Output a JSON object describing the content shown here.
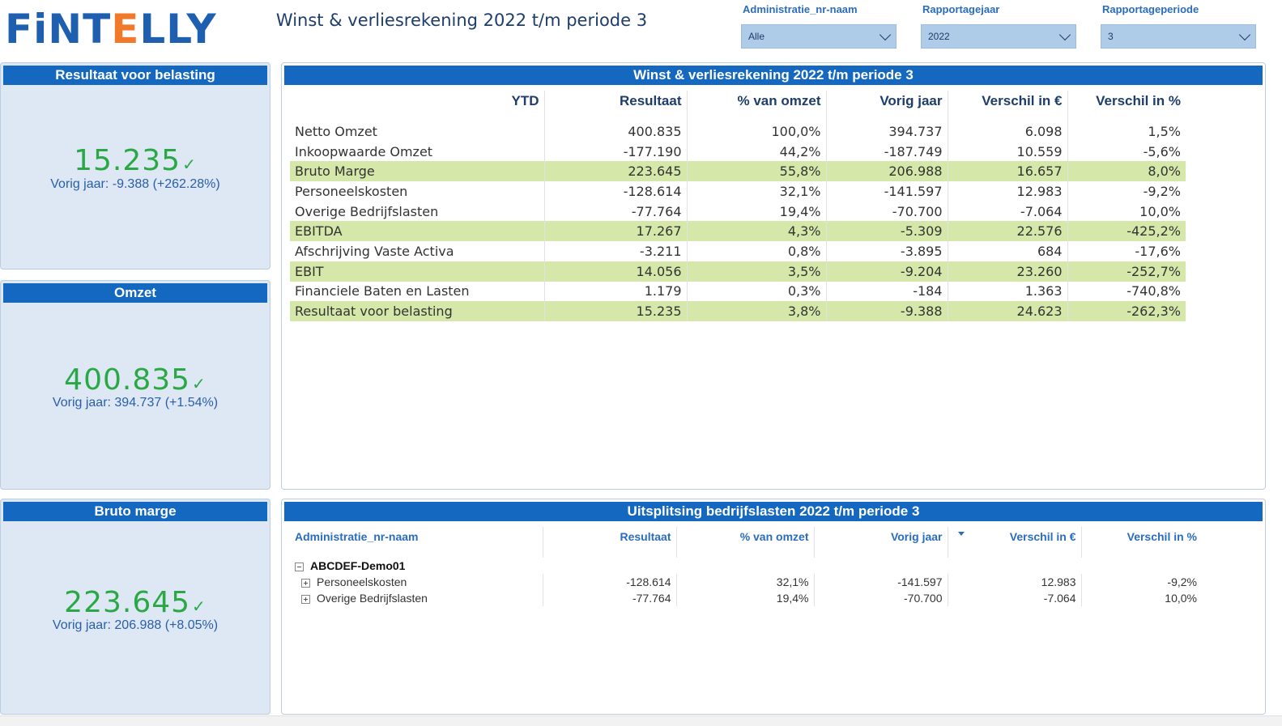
{
  "brand": {
    "logo_part1": "FiNT",
    "logo_part2": "E",
    "logo_part3": "LLY"
  },
  "page_title": "Winst & verliesrekening 2022 t/m periode 3",
  "slicers": [
    {
      "label": "Administratie_nr-naam",
      "value": "Alle"
    },
    {
      "label": "Rapportagejaar",
      "value": "2022"
    },
    {
      "label": "Rapportageperiode",
      "value": "3"
    }
  ],
  "kpis": [
    {
      "title": "Resultaat voor belasting",
      "value": "15.235",
      "check": "✓",
      "sub": "Vorig jaar: -9.388 (+262.28%)"
    },
    {
      "title": "Omzet",
      "value": "400.835",
      "check": "✓",
      "sub": "Vorig jaar: 394.737 (+1.54%)"
    },
    {
      "title": "Bruto marge",
      "value": "223.645",
      "check": "✓",
      "sub": "Vorig jaar: 206.988 (+8.05%)"
    }
  ],
  "pl_table": {
    "title": "Winst & verliesrekening 2022 t/m periode 3",
    "headers": [
      "YTD",
      "Resultaat",
      "% van omzet",
      "Vorig jaar",
      "Verschil in €",
      "Verschil in %"
    ],
    "rows": [
      [
        "Netto Omzet",
        "400.835",
        "100,0%",
        "394.737",
        "6.098",
        "1,5%"
      ],
      [
        "Inkoopwaarde Omzet",
        "-177.190",
        "44,2%",
        "-187.749",
        "10.559",
        "-5,6%"
      ],
      [
        "Bruto Marge",
        "223.645",
        "55,8%",
        "206.988",
        "16.657",
        "8,0%"
      ],
      [
        "Personeelskosten",
        "-128.614",
        "32,1%",
        "-141.597",
        "12.983",
        "-9,2%"
      ],
      [
        "Overige Bedrijfslasten",
        "-77.764",
        "19,4%",
        "-70.700",
        "-7.064",
        "10,0%"
      ],
      [
        "EBITDA",
        "17.267",
        "4,3%",
        "-5.309",
        "22.576",
        "-425,2%"
      ],
      [
        "Afschrijving Vaste Activa",
        "-3.211",
        "0,8%",
        "-3.895",
        "684",
        "-17,6%"
      ],
      [
        "EBIT",
        "14.056",
        "3,5%",
        "-9.204",
        "23.260",
        "-252,7%"
      ],
      [
        "Financiele Baten en Lasten",
        "1.179",
        "0,3%",
        "-184",
        "1.363",
        "-740,8%"
      ],
      [
        "Resultaat voor belasting",
        "15.235",
        "3,8%",
        "-9.388",
        "24.623",
        "-262,3%"
      ]
    ],
    "highlight_color": "#d5e7a9"
  },
  "breakdown_table": {
    "title": "Uitsplitsing bedrijfslasten 2022 t/m periode 3",
    "headers": [
      "Administratie_nr-naam",
      "Resultaat",
      "% van omzet",
      "Vorig jaar",
      "Verschil in €",
      "Verschil in %"
    ],
    "group": "ABCDEF-Demo01",
    "rows": [
      [
        "Personeelskosten",
        "-128.614",
        "32,1%",
        "-141.597",
        "12.983",
        "-9,2%"
      ],
      [
        "Overige Bedrijfslasten",
        "-77.764",
        "19,4%",
        "-70.700",
        "-7.064",
        "10,0%"
      ]
    ]
  },
  "colors": {
    "header_blue": "#1568c0",
    "card_bg": "#dde8f4",
    "kpi_green": "#2aa845",
    "link_blue": "#2a6cbf"
  }
}
